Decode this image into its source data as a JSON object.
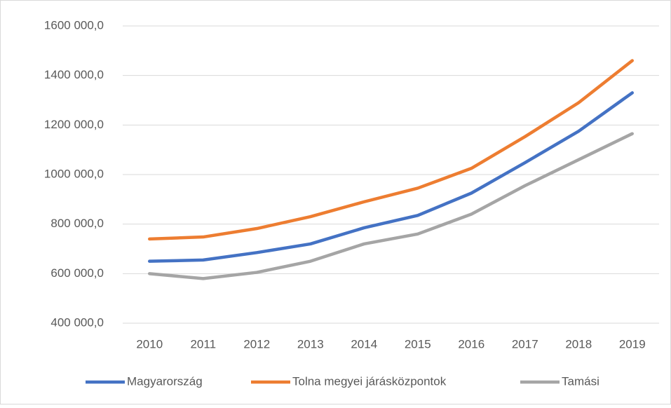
{
  "chart_data": {
    "type": "line",
    "categories": [
      "2010",
      "2011",
      "2012",
      "2013",
      "2014",
      "2015",
      "2016",
      "2017",
      "2018",
      "2019"
    ],
    "series": [
      {
        "name": "Magyarország",
        "color": "#4472c4",
        "values": [
          650000,
          655000,
          685000,
          720000,
          785000,
          835000,
          925000,
          1048000,
          1175000,
          1330000
        ]
      },
      {
        "name": "Tolna megyei járásközpontok",
        "color": "#ed7d31",
        "values": [
          740000,
          748000,
          782000,
          830000,
          890000,
          945000,
          1025000,
          1153000,
          1290000,
          1460000
        ]
      },
      {
        "name": "Tamási",
        "color": "#a5a5a5",
        "values": [
          600000,
          580000,
          605000,
          650000,
          720000,
          760000,
          840000,
          955000,
          1060000,
          1165000
        ]
      }
    ],
    "ylim": [
      400000,
      1600000
    ],
    "yticks": [
      {
        "value": 400000,
        "label": "400 000,0"
      },
      {
        "value": 600000,
        "label": "600 000,0"
      },
      {
        "value": 800000,
        "label": "800 000,0"
      },
      {
        "value": 1000000,
        "label": "1000 000,0"
      },
      {
        "value": 1200000,
        "label": "1200 000,0"
      },
      {
        "value": 1400000,
        "label": "1400 000,0"
      },
      {
        "value": 1600000,
        "label": "1600 000,0"
      }
    ],
    "grid": true,
    "legend": "bottom"
  }
}
